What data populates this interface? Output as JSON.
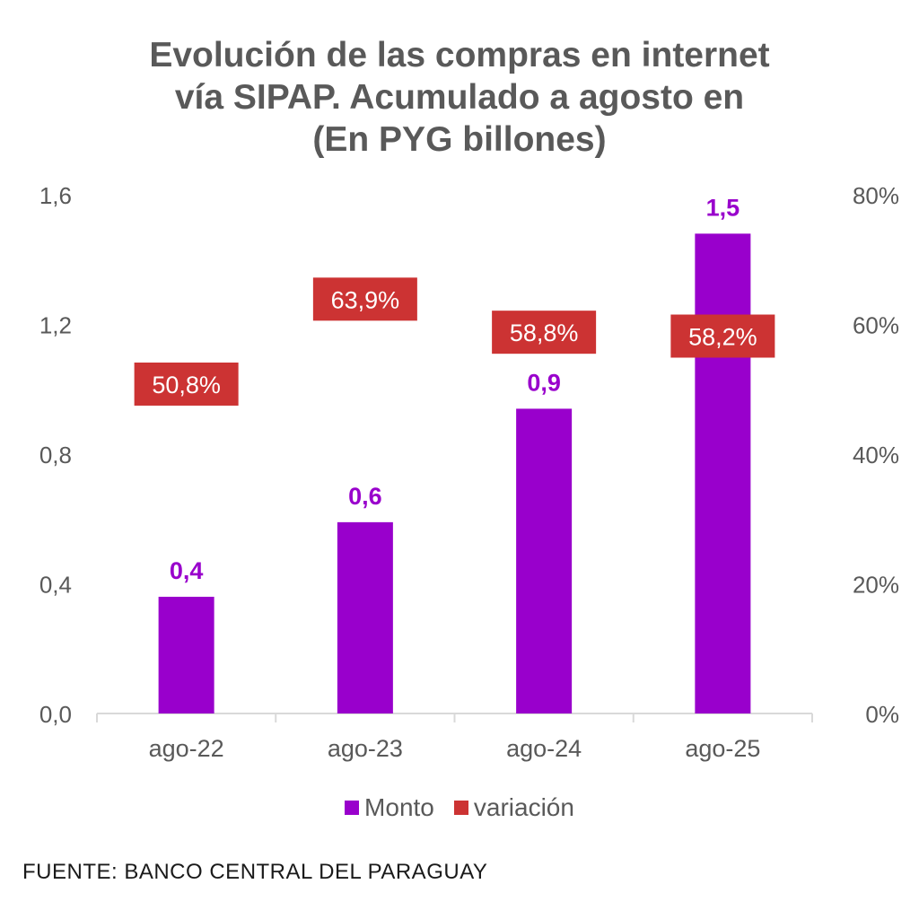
{
  "chart_data": {
    "type": "bar",
    "title_lines": [
      "Evolución de las compras en internet",
      "vía SIPAP. Acumulado a agosto en",
      "(En PYG billones)"
    ],
    "categories": [
      "ago-22",
      "ago-23",
      "ago-24",
      "ago-25"
    ],
    "series": [
      {
        "name": "Monto",
        "axis": "left",
        "color": "#9900cc",
        "values": [
          0.36,
          0.59,
          0.94,
          1.48
        ],
        "labels": [
          "0,4",
          "0,6",
          "0,9",
          "1,5"
        ]
      },
      {
        "name": "variación",
        "axis": "right",
        "color": "#cc3333",
        "values": [
          50.8,
          63.9,
          58.8,
          58.2
        ],
        "labels": [
          "50,8%",
          "63,9%",
          "58,8%",
          "58,2%"
        ]
      }
    ],
    "y_left": {
      "ylim": [
        0,
        1.6
      ],
      "ticks": [
        0,
        0.4,
        0.8,
        1.2,
        1.6
      ],
      "tick_labels": [
        "0,0",
        "0,4",
        "0,8",
        "1,2",
        "1,6"
      ]
    },
    "y_right": {
      "ylim": [
        0,
        80
      ],
      "ticks": [
        0,
        20,
        40,
        60,
        80
      ],
      "tick_labels": [
        "0%",
        "20%",
        "40%",
        "60%",
        "80%"
      ]
    },
    "xlabel": "",
    "ylabel": "",
    "grid": false,
    "legend_position": "bottom"
  },
  "source": "FUENTE: BANCO CENTRAL DEL PARAGUAY"
}
